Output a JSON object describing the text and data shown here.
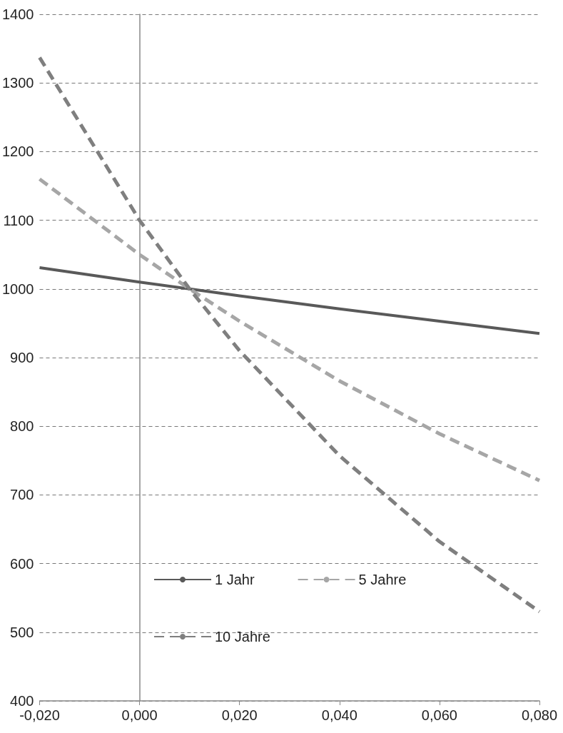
{
  "chart_data": {
    "type": "line",
    "x": [
      -0.02,
      0,
      0.01,
      0.02,
      0.04,
      0.06,
      0.08
    ],
    "series": [
      {
        "name": "1 Jahr",
        "color": "#595959",
        "line_style": "solid",
        "values": [
          1031,
          1010,
          1000,
          990,
          971,
          953,
          935
        ]
      },
      {
        "name": "5 Jahre",
        "color": "#a6a6a6",
        "line_style": "dashed",
        "values": [
          1160,
          1050,
          1000,
          953,
          866,
          789,
          721
        ]
      },
      {
        "name": "10 Jahre",
        "color": "#7f7f7f",
        "line_style": "dashed",
        "values": [
          1337,
          1100,
          1000,
          910,
          757,
          632,
          530
        ]
      }
    ],
    "xlim": [
      -0.02,
      0.08
    ],
    "xticks": [
      {
        "value": -0.02,
        "label": "-0,020"
      },
      {
        "value": 0,
        "label": "0,000"
      },
      {
        "value": 0.02,
        "label": "0,020"
      },
      {
        "value": 0.04,
        "label": "0,040"
      },
      {
        "value": 0.06,
        "label": "0,060"
      },
      {
        "value": 0.08,
        "label": "0,080"
      }
    ],
    "ylim": [
      400,
      1400
    ],
    "yticks": [
      400,
      500,
      600,
      700,
      800,
      900,
      1000,
      1100,
      1200,
      1300,
      1400
    ],
    "grid": "y",
    "legend": "bottom left",
    "marker": "none"
  }
}
